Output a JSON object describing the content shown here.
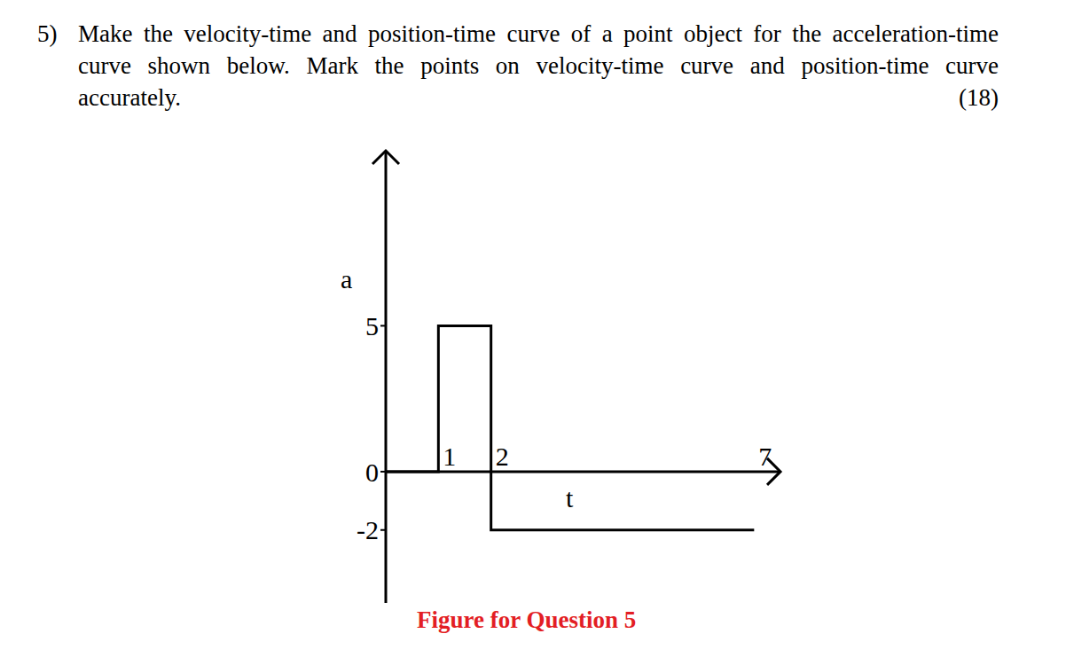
{
  "question": {
    "number": "5)",
    "lines": [
      "Make the velocity-time and position-time curve of a point object for the acceleration-time",
      "curve shown below. Mark the points on velocity-time curve and position-time curve",
      "accurately."
    ],
    "marks": "(18)"
  },
  "chart_data": {
    "type": "line",
    "x": [
      0,
      1,
      2,
      7
    ],
    "values": [
      0,
      5,
      -2,
      -2
    ],
    "line_style": "step",
    "color": "#000000",
    "xlim": [
      0,
      7.5
    ],
    "ylim": [
      -4.5,
      11
    ],
    "xticks": [
      1,
      2,
      7
    ],
    "yticks": [
      -2,
      0,
      5
    ],
    "x_label": "t",
    "y_label": "a"
  },
  "caption": {
    "text": "Figure for Question 5",
    "color": "#e31e24"
  }
}
